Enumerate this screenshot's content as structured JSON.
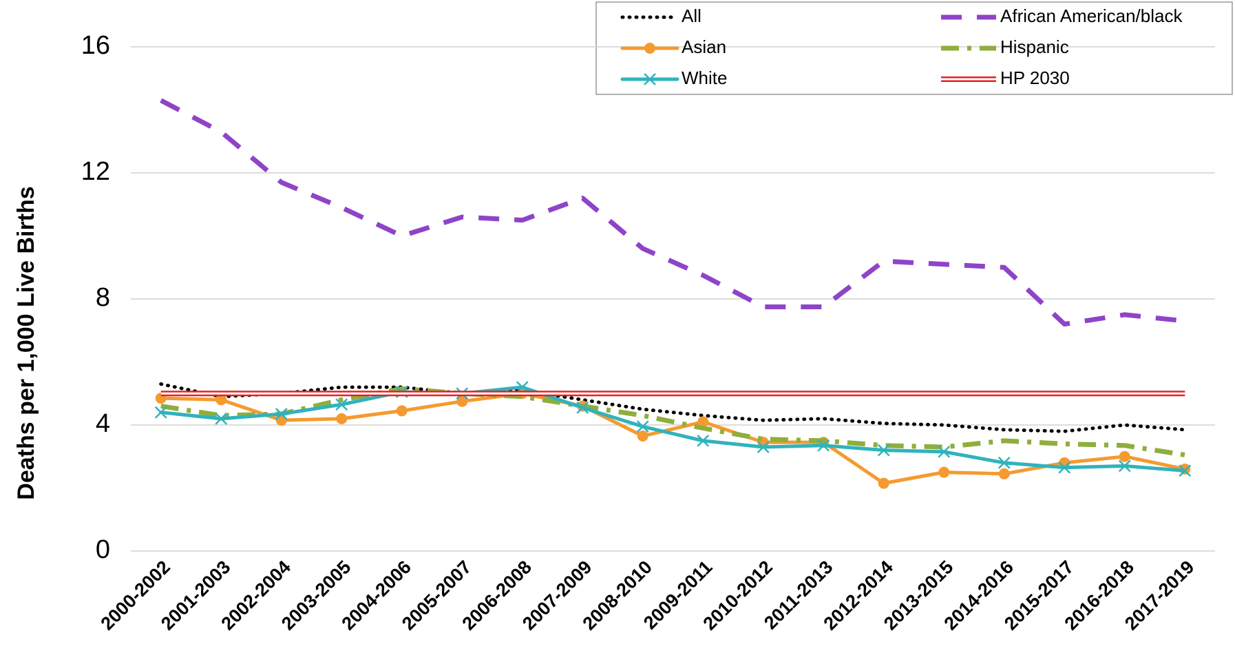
{
  "chart_data": {
    "type": "line",
    "y_label": "Deaths per 1,000 Live Births",
    "categories": [
      "2000-2002",
      "2001-2003",
      "2002-2004",
      "2003-2005",
      "2004-2006",
      "2005-2007",
      "2006-2008",
      "2007-2009",
      "2008-2010",
      "2009-2011",
      "2010-2012",
      "2011-2013",
      "2012-2014",
      "2013-2015",
      "2014-2016",
      "2015-2017",
      "2016-2018",
      "2017-2019"
    ],
    "series": [
      {
        "name": "All",
        "color": "#000000",
        "line_style": "dotted",
        "values": [
          5.3,
          4.9,
          5.0,
          5.2,
          5.2,
          5.0,
          5.1,
          4.8,
          4.5,
          4.3,
          4.15,
          4.2,
          4.05,
          4.0,
          3.85,
          3.8,
          4.0,
          3.85
        ]
      },
      {
        "name": "African American/black",
        "color": "#8e44c8",
        "line_style": "dashed",
        "values": [
          14.3,
          13.3,
          11.7,
          10.9,
          10.0,
          10.6,
          10.5,
          11.2,
          9.6,
          8.75,
          7.75,
          7.75,
          9.2,
          9.1,
          9.0,
          7.2,
          7.5,
          7.3
        ]
      },
      {
        "name": "Asian",
        "color": "#f59a30",
        "line_style": "solid",
        "marker": "circle",
        "values": [
          4.85,
          4.8,
          4.15,
          4.2,
          4.45,
          4.75,
          5.0,
          4.6,
          3.65,
          4.1,
          3.45,
          3.45,
          2.15,
          2.5,
          2.45,
          2.8,
          3.0,
          2.6
        ]
      },
      {
        "name": "Hispanic",
        "color": "#8fae3c",
        "line_style": "dashdot",
        "values": [
          4.6,
          4.3,
          4.35,
          4.8,
          5.15,
          5.0,
          4.9,
          4.6,
          4.3,
          3.9,
          3.55,
          3.5,
          3.35,
          3.3,
          3.5,
          3.4,
          3.35,
          3.05
        ]
      },
      {
        "name": "White",
        "color": "#2fb3bd",
        "line_style": "solid",
        "marker": "x",
        "values": [
          4.4,
          4.2,
          4.35,
          4.65,
          5.05,
          5.0,
          5.2,
          4.55,
          3.95,
          3.5,
          3.3,
          3.35,
          3.2,
          3.15,
          2.8,
          2.65,
          2.7,
          2.55
        ]
      },
      {
        "name": "HP 2030",
        "color": "#e32222",
        "line_style": "double",
        "values": [
          5,
          5,
          5,
          5,
          5,
          5,
          5,
          5,
          5,
          5,
          5,
          5,
          5,
          5,
          5,
          5,
          5,
          5
        ]
      }
    ],
    "ylim": [
      0,
      16
    ],
    "yticks": [
      0,
      4,
      8,
      12,
      16
    ],
    "grid": true,
    "legend": "top-right"
  }
}
